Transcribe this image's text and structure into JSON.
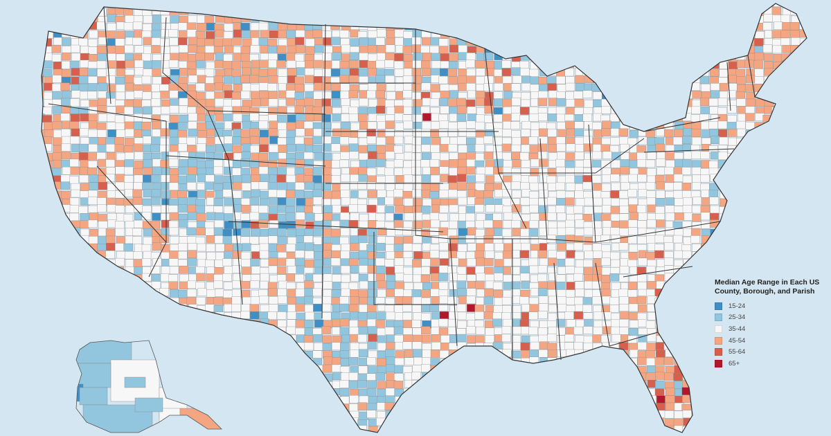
{
  "map": {
    "subject": "United States counties, boroughs, and parishes",
    "background_color": "#d4e6f1",
    "border_color": "#333333"
  },
  "legend": {
    "title_line1": "Median Age Range in Each US",
    "title_line2": "County, Borough, and Parish",
    "items": [
      {
        "label": "15-24",
        "color": "#3f8fc4"
      },
      {
        "label": "25-34",
        "color": "#92c5de"
      },
      {
        "label": "35-44",
        "color": "#f7f7f7"
      },
      {
        "label": "45-54",
        "color": "#f4a582"
      },
      {
        "label": "55-64",
        "color": "#d6604d"
      },
      {
        "label": "65+",
        "color": "#b2182b"
      }
    ]
  }
}
